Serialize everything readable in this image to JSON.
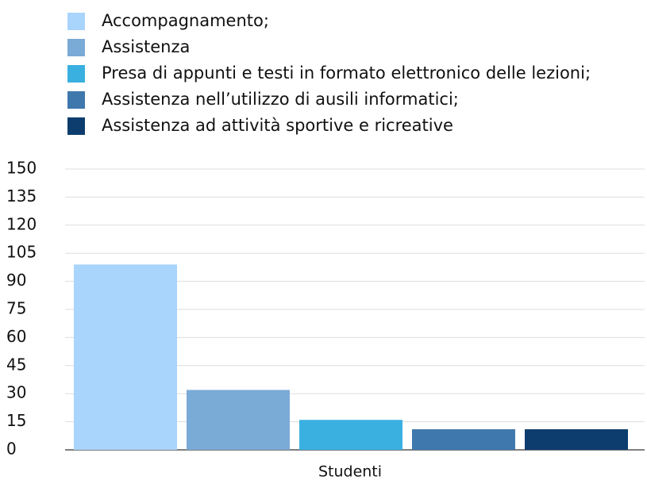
{
  "chart_data": {
    "type": "bar",
    "categories": [
      "Studenti"
    ],
    "series": [
      {
        "name": "Accompagnamento;",
        "color": "#a9d4fb",
        "values": [
          99
        ]
      },
      {
        "name": "Assistenza",
        "color": "#7aaad6",
        "values": [
          32
        ]
      },
      {
        "name": "Presa di appunti e  testi in formato elettronico delle lezioni;",
        "color": "#3ab0e0",
        "values": [
          16
        ]
      },
      {
        "name": "Assistenza nell’utilizzo di ausili informatici;",
        "color": "#3f78ad",
        "values": [
          11
        ]
      },
      {
        "name": "Assistenza ad attività sportive e ricreative",
        "color": "#0c3d6e",
        "values": [
          11
        ]
      }
    ],
    "ylim": [
      0,
      150
    ],
    "yticks": [
      0,
      15,
      30,
      45,
      60,
      75,
      90,
      105,
      120,
      135,
      150
    ],
    "grid": true,
    "legend": "top"
  }
}
